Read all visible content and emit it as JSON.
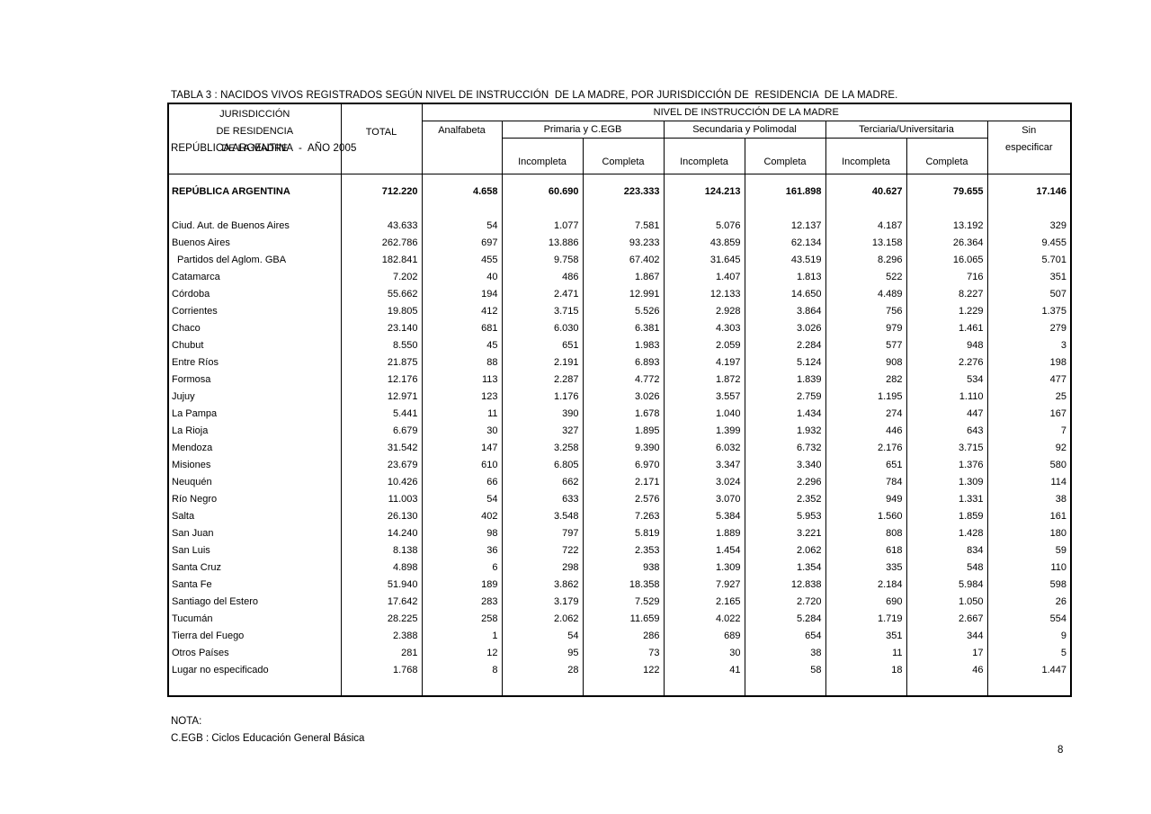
{
  "title": {
    "line1": "TABLA 3 : NACIDOS VIVOS REGISTRADOS SEGÚN NIVEL DE INSTRUCCIÓN  DE LA MADRE, POR JURISDICCIÓN DE  RESIDENCIA  DE LA MADRE.",
    "line2": "REPÚBLICA ARGENTINA  -  AÑO 2005"
  },
  "table": {
    "header": {
      "jurisdiction_lines": [
        "JURISDICCIÓN",
        "DE RESIDENCIA",
        "DE LA MADRE"
      ],
      "total": "TOTAL",
      "nivel_group": "NIVEL DE INSTRUCCIÓN DE LA MADRE",
      "analfabeta": "Analfabeta",
      "primaria_group": "Primaria y C.EGB",
      "secundaria_group": "Secundaria y Polimodal",
      "terciaria_group": "Terciaria/Universitaria",
      "sin_especificar_lines": [
        "Sin",
        "especificar"
      ],
      "incompleta": "Incompleta",
      "completa": "Completa"
    },
    "rows": [
      {
        "label": "REPÚBLICA ARGENTINA",
        "bold": true,
        "indent": false,
        "values": [
          "712.220",
          "4.658",
          "60.690",
          "223.333",
          "124.213",
          "161.898",
          "40.627",
          "79.655",
          "17.146"
        ]
      },
      {
        "label": "Ciud. Aut. de  Buenos Aires",
        "bold": false,
        "indent": false,
        "values": [
          "43.633",
          "54",
          "1.077",
          "7.581",
          "5.076",
          "12.137",
          "4.187",
          "13.192",
          "329"
        ]
      },
      {
        "label": "Buenos Aires",
        "bold": false,
        "indent": false,
        "values": [
          "262.786",
          "697",
          "13.886",
          "93.233",
          "43.859",
          "62.134",
          "13.158",
          "26.364",
          "9.455"
        ]
      },
      {
        "label": "Partidos del Aglom. GBA",
        "bold": false,
        "indent": true,
        "values": [
          "182.841",
          "455",
          "9.758",
          "67.402",
          "31.645",
          "43.519",
          "8.296",
          "16.065",
          "5.701"
        ]
      },
      {
        "label": "Catamarca",
        "bold": false,
        "indent": false,
        "values": [
          "7.202",
          "40",
          "486",
          "1.867",
          "1.407",
          "1.813",
          "522",
          "716",
          "351"
        ]
      },
      {
        "label": "Córdoba",
        "bold": false,
        "indent": false,
        "values": [
          "55.662",
          "194",
          "2.471",
          "12.991",
          "12.133",
          "14.650",
          "4.489",
          "8.227",
          "507"
        ]
      },
      {
        "label": "Corrientes",
        "bold": false,
        "indent": false,
        "values": [
          "19.805",
          "412",
          "3.715",
          "5.526",
          "2.928",
          "3.864",
          "756",
          "1.229",
          "1.375"
        ]
      },
      {
        "label": "Chaco",
        "bold": false,
        "indent": false,
        "values": [
          "23.140",
          "681",
          "6.030",
          "6.381",
          "4.303",
          "3.026",
          "979",
          "1.461",
          "279"
        ]
      },
      {
        "label": "Chubut",
        "bold": false,
        "indent": false,
        "values": [
          "8.550",
          "45",
          "651",
          "1.983",
          "2.059",
          "2.284",
          "577",
          "948",
          "3"
        ]
      },
      {
        "label": "Entre Ríos",
        "bold": false,
        "indent": false,
        "values": [
          "21.875",
          "88",
          "2.191",
          "6.893",
          "4.197",
          "5.124",
          "908",
          "2.276",
          "198"
        ]
      },
      {
        "label": "Formosa",
        "bold": false,
        "indent": false,
        "values": [
          "12.176",
          "113",
          "2.287",
          "4.772",
          "1.872",
          "1.839",
          "282",
          "534",
          "477"
        ]
      },
      {
        "label": "Jujuy",
        "bold": false,
        "indent": false,
        "values": [
          "12.971",
          "123",
          "1.176",
          "3.026",
          "3.557",
          "2.759",
          "1.195",
          "1.110",
          "25"
        ]
      },
      {
        "label": "La Pampa",
        "bold": false,
        "indent": false,
        "values": [
          "5.441",
          "11",
          "390",
          "1.678",
          "1.040",
          "1.434",
          "274",
          "447",
          "167"
        ]
      },
      {
        "label": "La Rioja",
        "bold": false,
        "indent": false,
        "values": [
          "6.679",
          "30",
          "327",
          "1.895",
          "1.399",
          "1.932",
          "446",
          "643",
          "7"
        ]
      },
      {
        "label": "Mendoza",
        "bold": false,
        "indent": false,
        "values": [
          "31.542",
          "147",
          "3.258",
          "9.390",
          "6.032",
          "6.732",
          "2.176",
          "3.715",
          "92"
        ]
      },
      {
        "label": "Misiones",
        "bold": false,
        "indent": false,
        "values": [
          "23.679",
          "610",
          "6.805",
          "6.970",
          "3.347",
          "3.340",
          "651",
          "1.376",
          "580"
        ]
      },
      {
        "label": "Neuquén",
        "bold": false,
        "indent": false,
        "values": [
          "10.426",
          "66",
          "662",
          "2.171",
          "3.024",
          "2.296",
          "784",
          "1.309",
          "114"
        ]
      },
      {
        "label": "Río Negro",
        "bold": false,
        "indent": false,
        "values": [
          "11.003",
          "54",
          "633",
          "2.576",
          "3.070",
          "2.352",
          "949",
          "1.331",
          "38"
        ]
      },
      {
        "label": "Salta",
        "bold": false,
        "indent": false,
        "values": [
          "26.130",
          "402",
          "3.548",
          "7.263",
          "5.384",
          "5.953",
          "1.560",
          "1.859",
          "161"
        ]
      },
      {
        "label": "San Juan",
        "bold": false,
        "indent": false,
        "values": [
          "14.240",
          "98",
          "797",
          "5.819",
          "1.889",
          "3.221",
          "808",
          "1.428",
          "180"
        ]
      },
      {
        "label": "San Luis",
        "bold": false,
        "indent": false,
        "values": [
          "8.138",
          "36",
          "722",
          "2.353",
          "1.454",
          "2.062",
          "618",
          "834",
          "59"
        ]
      },
      {
        "label": "Santa Cruz",
        "bold": false,
        "indent": false,
        "values": [
          "4.898",
          "6",
          "298",
          "938",
          "1.309",
          "1.354",
          "335",
          "548",
          "110"
        ]
      },
      {
        "label": "Santa Fe",
        "bold": false,
        "indent": false,
        "values": [
          "51.940",
          "189",
          "3.862",
          "18.358",
          "7.927",
          "12.838",
          "2.184",
          "5.984",
          "598"
        ]
      },
      {
        "label": "Santiago del Estero",
        "bold": false,
        "indent": false,
        "values": [
          "17.642",
          "283",
          "3.179",
          "7.529",
          "2.165",
          "2.720",
          "690",
          "1.050",
          "26"
        ]
      },
      {
        "label": "Tucumán",
        "bold": false,
        "indent": false,
        "values": [
          "28.225",
          "258",
          "2.062",
          "11.659",
          "4.022",
          "5.284",
          "1.719",
          "2.667",
          "554"
        ]
      },
      {
        "label": "Tierra del Fuego",
        "bold": false,
        "indent": false,
        "values": [
          "2.388",
          "1",
          "54",
          "286",
          "689",
          "654",
          "351",
          "344",
          "9"
        ]
      },
      {
        "label": "Otros Países",
        "bold": false,
        "indent": false,
        "values": [
          "281",
          "12",
          "95",
          "73",
          "30",
          "38",
          "11",
          "17",
          "5"
        ]
      },
      {
        "label": "Lugar no especificado",
        "bold": false,
        "indent": false,
        "values": [
          "1.768",
          "8",
          "28",
          "122",
          "41",
          "58",
          "18",
          "46",
          "1.447"
        ]
      }
    ]
  },
  "notes": {
    "line1": "NOTA:",
    "line2": "C.EGB : Ciclos Educación General Básica"
  },
  "page_number": "8",
  "colors": {
    "background": "#ffffff",
    "text": "#000000",
    "border": "#000000"
  }
}
